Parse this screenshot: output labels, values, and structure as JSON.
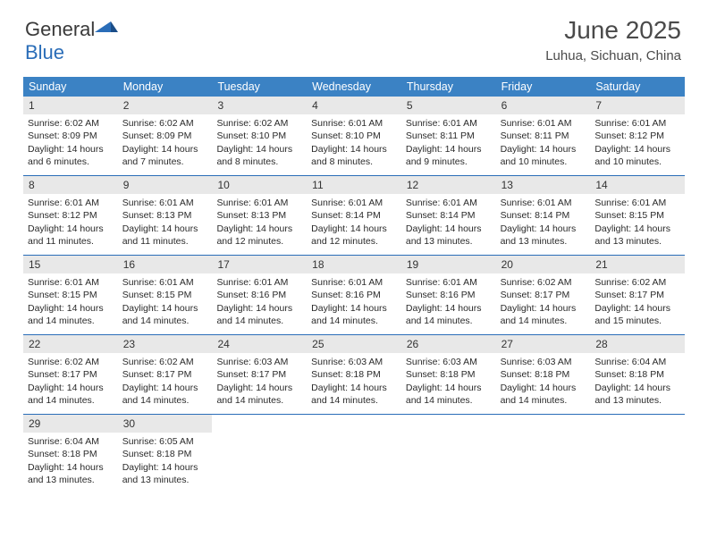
{
  "logo": {
    "text_general": "General",
    "text_blue": "Blue"
  },
  "header": {
    "month": "June 2025",
    "location": "Luhua, Sichuan, China"
  },
  "colors": {
    "header_bg": "#3b82c4",
    "header_text": "#ffffff",
    "divider": "#2a6db8",
    "daybar_bg": "#e8e8e8",
    "text": "#2a2a2a",
    "logo_blue": "#2a6db8"
  },
  "weekdays": [
    "Sunday",
    "Monday",
    "Tuesday",
    "Wednesday",
    "Thursday",
    "Friday",
    "Saturday"
  ],
  "weeks": [
    [
      {
        "n": "1",
        "sr": "Sunrise: 6:02 AM",
        "ss": "Sunset: 8:09 PM",
        "d1": "Daylight: 14 hours",
        "d2": "and 6 minutes."
      },
      {
        "n": "2",
        "sr": "Sunrise: 6:02 AM",
        "ss": "Sunset: 8:09 PM",
        "d1": "Daylight: 14 hours",
        "d2": "and 7 minutes."
      },
      {
        "n": "3",
        "sr": "Sunrise: 6:02 AM",
        "ss": "Sunset: 8:10 PM",
        "d1": "Daylight: 14 hours",
        "d2": "and 8 minutes."
      },
      {
        "n": "4",
        "sr": "Sunrise: 6:01 AM",
        "ss": "Sunset: 8:10 PM",
        "d1": "Daylight: 14 hours",
        "d2": "and 8 minutes."
      },
      {
        "n": "5",
        "sr": "Sunrise: 6:01 AM",
        "ss": "Sunset: 8:11 PM",
        "d1": "Daylight: 14 hours",
        "d2": "and 9 minutes."
      },
      {
        "n": "6",
        "sr": "Sunrise: 6:01 AM",
        "ss": "Sunset: 8:11 PM",
        "d1": "Daylight: 14 hours",
        "d2": "and 10 minutes."
      },
      {
        "n": "7",
        "sr": "Sunrise: 6:01 AM",
        "ss": "Sunset: 8:12 PM",
        "d1": "Daylight: 14 hours",
        "d2": "and 10 minutes."
      }
    ],
    [
      {
        "n": "8",
        "sr": "Sunrise: 6:01 AM",
        "ss": "Sunset: 8:12 PM",
        "d1": "Daylight: 14 hours",
        "d2": "and 11 minutes."
      },
      {
        "n": "9",
        "sr": "Sunrise: 6:01 AM",
        "ss": "Sunset: 8:13 PM",
        "d1": "Daylight: 14 hours",
        "d2": "and 11 minutes."
      },
      {
        "n": "10",
        "sr": "Sunrise: 6:01 AM",
        "ss": "Sunset: 8:13 PM",
        "d1": "Daylight: 14 hours",
        "d2": "and 12 minutes."
      },
      {
        "n": "11",
        "sr": "Sunrise: 6:01 AM",
        "ss": "Sunset: 8:14 PM",
        "d1": "Daylight: 14 hours",
        "d2": "and 12 minutes."
      },
      {
        "n": "12",
        "sr": "Sunrise: 6:01 AM",
        "ss": "Sunset: 8:14 PM",
        "d1": "Daylight: 14 hours",
        "d2": "and 13 minutes."
      },
      {
        "n": "13",
        "sr": "Sunrise: 6:01 AM",
        "ss": "Sunset: 8:14 PM",
        "d1": "Daylight: 14 hours",
        "d2": "and 13 minutes."
      },
      {
        "n": "14",
        "sr": "Sunrise: 6:01 AM",
        "ss": "Sunset: 8:15 PM",
        "d1": "Daylight: 14 hours",
        "d2": "and 13 minutes."
      }
    ],
    [
      {
        "n": "15",
        "sr": "Sunrise: 6:01 AM",
        "ss": "Sunset: 8:15 PM",
        "d1": "Daylight: 14 hours",
        "d2": "and 14 minutes."
      },
      {
        "n": "16",
        "sr": "Sunrise: 6:01 AM",
        "ss": "Sunset: 8:15 PM",
        "d1": "Daylight: 14 hours",
        "d2": "and 14 minutes."
      },
      {
        "n": "17",
        "sr": "Sunrise: 6:01 AM",
        "ss": "Sunset: 8:16 PM",
        "d1": "Daylight: 14 hours",
        "d2": "and 14 minutes."
      },
      {
        "n": "18",
        "sr": "Sunrise: 6:01 AM",
        "ss": "Sunset: 8:16 PM",
        "d1": "Daylight: 14 hours",
        "d2": "and 14 minutes."
      },
      {
        "n": "19",
        "sr": "Sunrise: 6:01 AM",
        "ss": "Sunset: 8:16 PM",
        "d1": "Daylight: 14 hours",
        "d2": "and 14 minutes."
      },
      {
        "n": "20",
        "sr": "Sunrise: 6:02 AM",
        "ss": "Sunset: 8:17 PM",
        "d1": "Daylight: 14 hours",
        "d2": "and 14 minutes."
      },
      {
        "n": "21",
        "sr": "Sunrise: 6:02 AM",
        "ss": "Sunset: 8:17 PM",
        "d1": "Daylight: 14 hours",
        "d2": "and 15 minutes."
      }
    ],
    [
      {
        "n": "22",
        "sr": "Sunrise: 6:02 AM",
        "ss": "Sunset: 8:17 PM",
        "d1": "Daylight: 14 hours",
        "d2": "and 14 minutes."
      },
      {
        "n": "23",
        "sr": "Sunrise: 6:02 AM",
        "ss": "Sunset: 8:17 PM",
        "d1": "Daylight: 14 hours",
        "d2": "and 14 minutes."
      },
      {
        "n": "24",
        "sr": "Sunrise: 6:03 AM",
        "ss": "Sunset: 8:17 PM",
        "d1": "Daylight: 14 hours",
        "d2": "and 14 minutes."
      },
      {
        "n": "25",
        "sr": "Sunrise: 6:03 AM",
        "ss": "Sunset: 8:18 PM",
        "d1": "Daylight: 14 hours",
        "d2": "and 14 minutes."
      },
      {
        "n": "26",
        "sr": "Sunrise: 6:03 AM",
        "ss": "Sunset: 8:18 PM",
        "d1": "Daylight: 14 hours",
        "d2": "and 14 minutes."
      },
      {
        "n": "27",
        "sr": "Sunrise: 6:03 AM",
        "ss": "Sunset: 8:18 PM",
        "d1": "Daylight: 14 hours",
        "d2": "and 14 minutes."
      },
      {
        "n": "28",
        "sr": "Sunrise: 6:04 AM",
        "ss": "Sunset: 8:18 PM",
        "d1": "Daylight: 14 hours",
        "d2": "and 13 minutes."
      }
    ],
    [
      {
        "n": "29",
        "sr": "Sunrise: 6:04 AM",
        "ss": "Sunset: 8:18 PM",
        "d1": "Daylight: 14 hours",
        "d2": "and 13 minutes."
      },
      {
        "n": "30",
        "sr": "Sunrise: 6:05 AM",
        "ss": "Sunset: 8:18 PM",
        "d1": "Daylight: 14 hours",
        "d2": "and 13 minutes."
      },
      {
        "empty": true
      },
      {
        "empty": true
      },
      {
        "empty": true
      },
      {
        "empty": true
      },
      {
        "empty": true
      }
    ]
  ]
}
